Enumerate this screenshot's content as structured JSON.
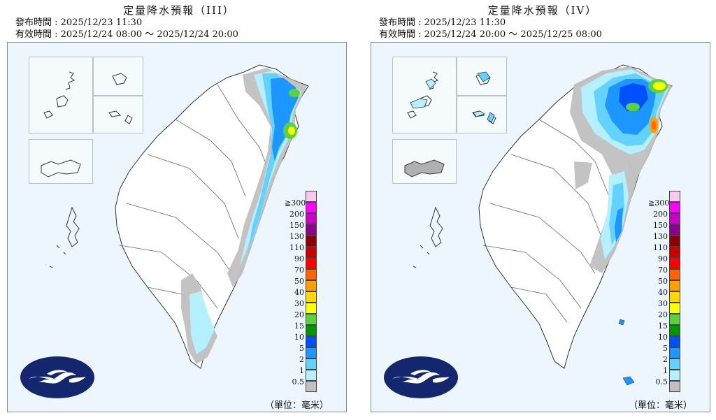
{
  "panels": [
    {
      "title": "定量降水預報（III）",
      "issued": "發布時間 : 2025/12/23 11:30",
      "valid": "有效時間 : 2025/12/24 08:00 ～ 2025/12/24 20:00"
    },
    {
      "title": "定量降水預報（IV）",
      "issued": "發布時間 : 2025/12/23 11:30",
      "valid": "有效時間 : 2025/12/24 20:00 ～ 2025/12/25 08:00"
    }
  ],
  "legend": {
    "labels": [
      "≧300",
      "200",
      "150",
      "130",
      "110",
      "90",
      "70",
      "50",
      "40",
      "30",
      "20",
      "15",
      "10",
      "5",
      "2",
      "1",
      "0.5"
    ],
    "colors": [
      "#fcc8f0",
      "#ff00ff",
      "#c800c8",
      "#8c008c",
      "#8b0000",
      "#c80000",
      "#ff0000",
      "#ff6400",
      "#ffa000",
      "#ffd800",
      "#ffff00",
      "#5ad23c",
      "#009600",
      "#0050ff",
      "#1e96ff",
      "#64d2ff",
      "#b4f0ff",
      "#c0c0c0"
    ],
    "unit": "（單位：毫米）"
  },
  "map_style": {
    "background": "#ecf6fc",
    "land": "#ffffff",
    "border": "#555555",
    "logo_color": "#13266e"
  }
}
